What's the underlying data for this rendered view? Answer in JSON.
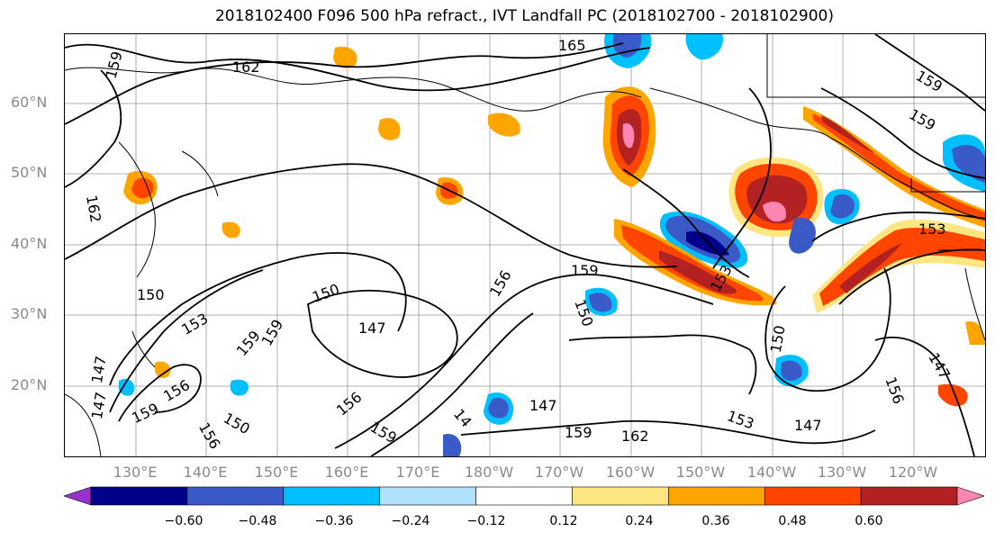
{
  "title": "2018102400 F096 500 hPa refract., IVT Landfall PC (2018102700 - 2018102900)",
  "lat_labels": [
    "60°N",
    "50°N",
    "40°N",
    "30°N",
    "20°N"
  ],
  "lon_labels": [
    "130°E",
    "140°E",
    "150°E",
    "160°E",
    "170°E",
    "180°W",
    "170°W",
    "160°W",
    "150°W",
    "140°W",
    "130°W",
    "120°W"
  ],
  "colorbar": {
    "ticks": [
      "−0.60",
      "−0.48",
      "−0.36",
      "−0.24",
      "−0.12",
      "0.12",
      "0.24",
      "0.36",
      "0.48",
      "0.60"
    ],
    "colors": [
      "#9932cc",
      "#00008b",
      "#3a5bc7",
      "#00bfff",
      "#b0e0ff",
      "#ffffff",
      "#ffe680",
      "#ffa500",
      "#ff4500",
      "#b22222",
      "#ff85b2"
    ]
  },
  "contour_labels": [
    {
      "text": "165"
    },
    {
      "text": "162"
    },
    {
      "text": "159"
    },
    {
      "text": "159"
    },
    {
      "text": "162"
    },
    {
      "text": "159"
    },
    {
      "text": "153"
    },
    {
      "text": "159"
    },
    {
      "text": "150"
    },
    {
      "text": "156"
    },
    {
      "text": "150"
    },
    {
      "text": "147"
    },
    {
      "text": "153"
    },
    {
      "text": "159"
    },
    {
      "text": "150"
    },
    {
      "text": "153"
    },
    {
      "text": "159"
    },
    {
      "text": "147"
    },
    {
      "text": "147"
    },
    {
      "text": "156"
    },
    {
      "text": "159"
    },
    {
      "text": "156"
    },
    {
      "text": "150"
    },
    {
      "text": "156"
    },
    {
      "text": "159"
    },
    {
      "text": "14"
    },
    {
      "text": "147"
    },
    {
      "text": "159"
    },
    {
      "text": "162"
    },
    {
      "text": "153"
    },
    {
      "text": "147"
    },
    {
      "text": "156"
    },
    {
      "text": "147"
    },
    {
      "text": "150"
    }
  ]
}
